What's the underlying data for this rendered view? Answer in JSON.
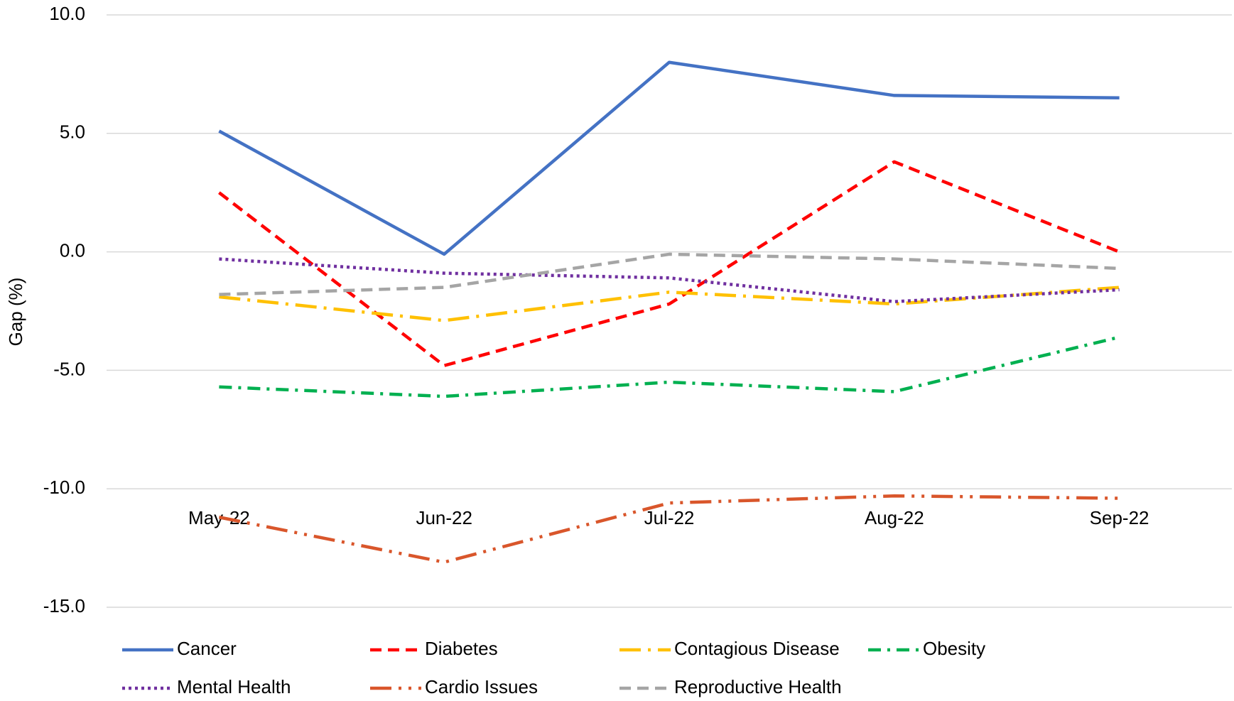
{
  "chart_data": {
    "type": "line",
    "y_label": "Gap (%)",
    "categories": [
      "May-22",
      "Jun-22",
      "Jul-22",
      "Aug-22",
      "Sep-22"
    ],
    "series": [
      {
        "name": "Cancer",
        "color": "#4472c4",
        "dash": "solid",
        "values": [
          5.1,
          -0.1,
          8.0,
          6.6,
          6.5
        ]
      },
      {
        "name": "Diabetes",
        "color": "#ff0000",
        "dash": "dash",
        "values": [
          2.5,
          -4.8,
          -2.2,
          3.8,
          0.0
        ]
      },
      {
        "name": "Contagious Disease",
        "color": "#ffc000",
        "dash": "longdashdot",
        "values": [
          -1.9,
          -2.9,
          -1.7,
          -2.2,
          -1.5
        ]
      },
      {
        "name": "Obesity",
        "color": "#00b050",
        "dash": "dashdot",
        "values": [
          -5.7,
          -6.1,
          -5.5,
          -5.9,
          -3.6
        ]
      },
      {
        "name": "Mental Health",
        "color": "#7030a0",
        "dash": "dot",
        "values": [
          -0.3,
          -0.9,
          -1.1,
          -2.1,
          -1.6
        ]
      },
      {
        "name": "Cardio Issues",
        "color": "#d9562b",
        "dash": "longdashdotdot",
        "values": [
          -11.2,
          -13.1,
          -10.6,
          -10.3,
          -10.4
        ]
      },
      {
        "name": "Reproductive Health",
        "color": "#a5a5a5",
        "dash": "dash",
        "values": [
          -1.8,
          -1.5,
          -0.1,
          -0.3,
          -0.7
        ]
      }
    ],
    "ylim": [
      -15,
      10
    ],
    "yticks": [
      {
        "value": -15,
        "label": "-15.0"
      },
      {
        "value": -10,
        "label": "-10.0"
      },
      {
        "value": -5,
        "label": "-5.0"
      },
      {
        "value": 0,
        "label": "0.0"
      },
      {
        "value": 5,
        "label": "5.0"
      },
      {
        "value": 10,
        "label": "10.0"
      }
    ],
    "grid": true,
    "legend": "bottom"
  }
}
